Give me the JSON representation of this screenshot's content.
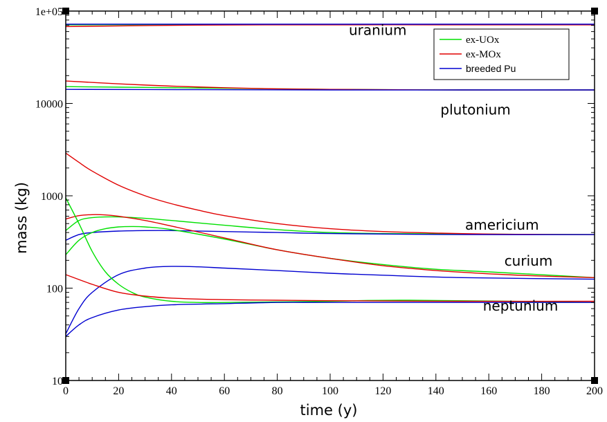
{
  "chart_data": {
    "type": "line",
    "xlabel": "time (y)",
    "ylabel": "mass (kg)",
    "xlim": [
      0,
      200
    ],
    "ylim": [
      10,
      100000
    ],
    "yscale": "log",
    "x_ticks": [
      0,
      20,
      40,
      60,
      80,
      100,
      120,
      140,
      160,
      180,
      200
    ],
    "x_tick_labels": [
      "0",
      "20",
      "40",
      "60",
      "80",
      "100",
      "120",
      "140",
      "160",
      "180",
      "200"
    ],
    "y_ticks": [
      10,
      100,
      1000,
      10000,
      100000
    ],
    "y_tick_labels": [
      "10",
      "100",
      "1000",
      "10000",
      "1e+05"
    ],
    "legend": {
      "placement": "top-right",
      "entries": [
        {
          "label": "ex-UOx",
          "color": "#00e000"
        },
        {
          "label": "ex-MOx",
          "color": "#e00000"
        },
        {
          "label": "breeded Pu",
          "color": "#0000d0"
        }
      ]
    },
    "annotations": [
      {
        "text": "uranium",
        "x": 118,
        "y": 55000
      },
      {
        "text": "plutonium",
        "x": 155,
        "y": 7600
      },
      {
        "text": "americium",
        "x": 165,
        "y": 430
      },
      {
        "text": "curium",
        "x": 175,
        "y": 175
      },
      {
        "text": "neptunium",
        "x": 172,
        "y": 57
      }
    ],
    "series": [
      {
        "name": "ex-UOx",
        "element": "uranium",
        "color": "#00e000",
        "x": [
          0,
          50,
          100,
          150,
          200
        ],
        "y": [
          71000,
          71500,
          71500,
          71500,
          71500
        ]
      },
      {
        "name": "ex-MOx",
        "element": "uranium",
        "color": "#e00000",
        "x": [
          0,
          50,
          100,
          150,
          200
        ],
        "y": [
          68000,
          70500,
          71000,
          71000,
          71000
        ]
      },
      {
        "name": "breeded Pu",
        "element": "uranium",
        "color": "#0000d0",
        "x": [
          0,
          50,
          100,
          150,
          200
        ],
        "y": [
          72000,
          72000,
          72000,
          72000,
          72000
        ]
      },
      {
        "name": "ex-UOx",
        "element": "plutonium",
        "color": "#00e000",
        "x": [
          0,
          20,
          40,
          60,
          80,
          100,
          150,
          200
        ],
        "y": [
          15200,
          15000,
          14800,
          14600,
          14400,
          14200,
          14000,
          14000
        ]
      },
      {
        "name": "ex-MOx",
        "element": "plutonium",
        "color": "#e00000",
        "x": [
          0,
          20,
          40,
          60,
          80,
          100,
          150,
          200
        ],
        "y": [
          17500,
          16300,
          15400,
          14800,
          14400,
          14200,
          14000,
          14000
        ]
      },
      {
        "name": "breeded Pu",
        "element": "plutonium",
        "color": "#0000d0",
        "x": [
          0,
          50,
          100,
          150,
          200
        ],
        "y": [
          14200,
          14100,
          14000,
          14000,
          14000
        ]
      },
      {
        "name": "ex-UOx",
        "element": "americium",
        "color": "#00e000",
        "x": [
          0,
          5,
          10,
          15,
          20,
          30,
          40,
          60,
          80,
          100,
          120,
          150,
          200
        ],
        "y": [
          420,
          540,
          580,
          590,
          590,
          570,
          540,
          480,
          430,
          400,
          390,
          385,
          380
        ]
      },
      {
        "name": "ex-MOx",
        "element": "americium",
        "color": "#e00000",
        "x": [
          0,
          5,
          10,
          20,
          30,
          40,
          50,
          60,
          80,
          100,
          120,
          140,
          160,
          180,
          200
        ],
        "y": [
          2900,
          2300,
          1850,
          1300,
          1000,
          820,
          700,
          610,
          500,
          440,
          410,
          395,
          385,
          382,
          380
        ]
      },
      {
        "name": "breeded Pu",
        "element": "americium",
        "color": "#0000d0",
        "x": [
          0,
          5,
          10,
          20,
          30,
          40,
          60,
          80,
          100,
          150,
          200
        ],
        "y": [
          330,
          380,
          400,
          415,
          420,
          420,
          410,
          400,
          390,
          380,
          380
        ]
      },
      {
        "name": "ex-UOx",
        "element": "curium",
        "color": "#00e000",
        "x": [
          0,
          5,
          10,
          15,
          20,
          25,
          30,
          40,
          60,
          80,
          100,
          120,
          140,
          160,
          200
        ],
        "y": [
          230,
          330,
          400,
          440,
          460,
          465,
          460,
          430,
          340,
          260,
          210,
          180,
          160,
          150,
          130
        ]
      },
      {
        "name": "ex-MOx",
        "element": "curium",
        "color": "#e00000",
        "x": [
          0,
          5,
          10,
          15,
          20,
          30,
          40,
          60,
          80,
          100,
          120,
          140,
          160,
          180,
          200
        ],
        "y": [
          560,
          610,
          625,
          620,
          600,
          540,
          470,
          350,
          260,
          210,
          175,
          155,
          143,
          135,
          130
        ]
      },
      {
        "name": "breeded Pu",
        "element": "curium",
        "color": "#0000d0",
        "x": [
          0,
          5,
          10,
          20,
          30,
          40,
          50,
          60,
          80,
          100,
          120,
          150,
          200
        ],
        "y": [
          32,
          60,
          90,
          140,
          165,
          172,
          170,
          165,
          155,
          145,
          138,
          130,
          125
        ]
      },
      {
        "name": "ex-UOx",
        "element": "neptunium",
        "color": "#00e000",
        "x": [
          0,
          5,
          10,
          15,
          20,
          25,
          30,
          40,
          50,
          60,
          100,
          130,
          200
        ],
        "y": [
          950,
          500,
          250,
          150,
          110,
          90,
          80,
          72,
          70,
          70,
          72,
          74,
          70
        ]
      },
      {
        "name": "ex-MOx",
        "element": "neptunium",
        "color": "#e00000",
        "x": [
          0,
          10,
          20,
          30,
          40,
          60,
          80,
          100,
          150,
          200
        ],
        "y": [
          140,
          110,
          90,
          82,
          78,
          75,
          74,
          73,
          72,
          72
        ]
      },
      {
        "name": "breeded Pu",
        "element": "neptunium",
        "color": "#0000d0",
        "x": [
          0,
          5,
          10,
          20,
          30,
          40,
          60,
          80,
          100,
          150,
          200
        ],
        "y": [
          30,
          40,
          48,
          58,
          63,
          66,
          68,
          70,
          70,
          70,
          70
        ]
      }
    ]
  }
}
